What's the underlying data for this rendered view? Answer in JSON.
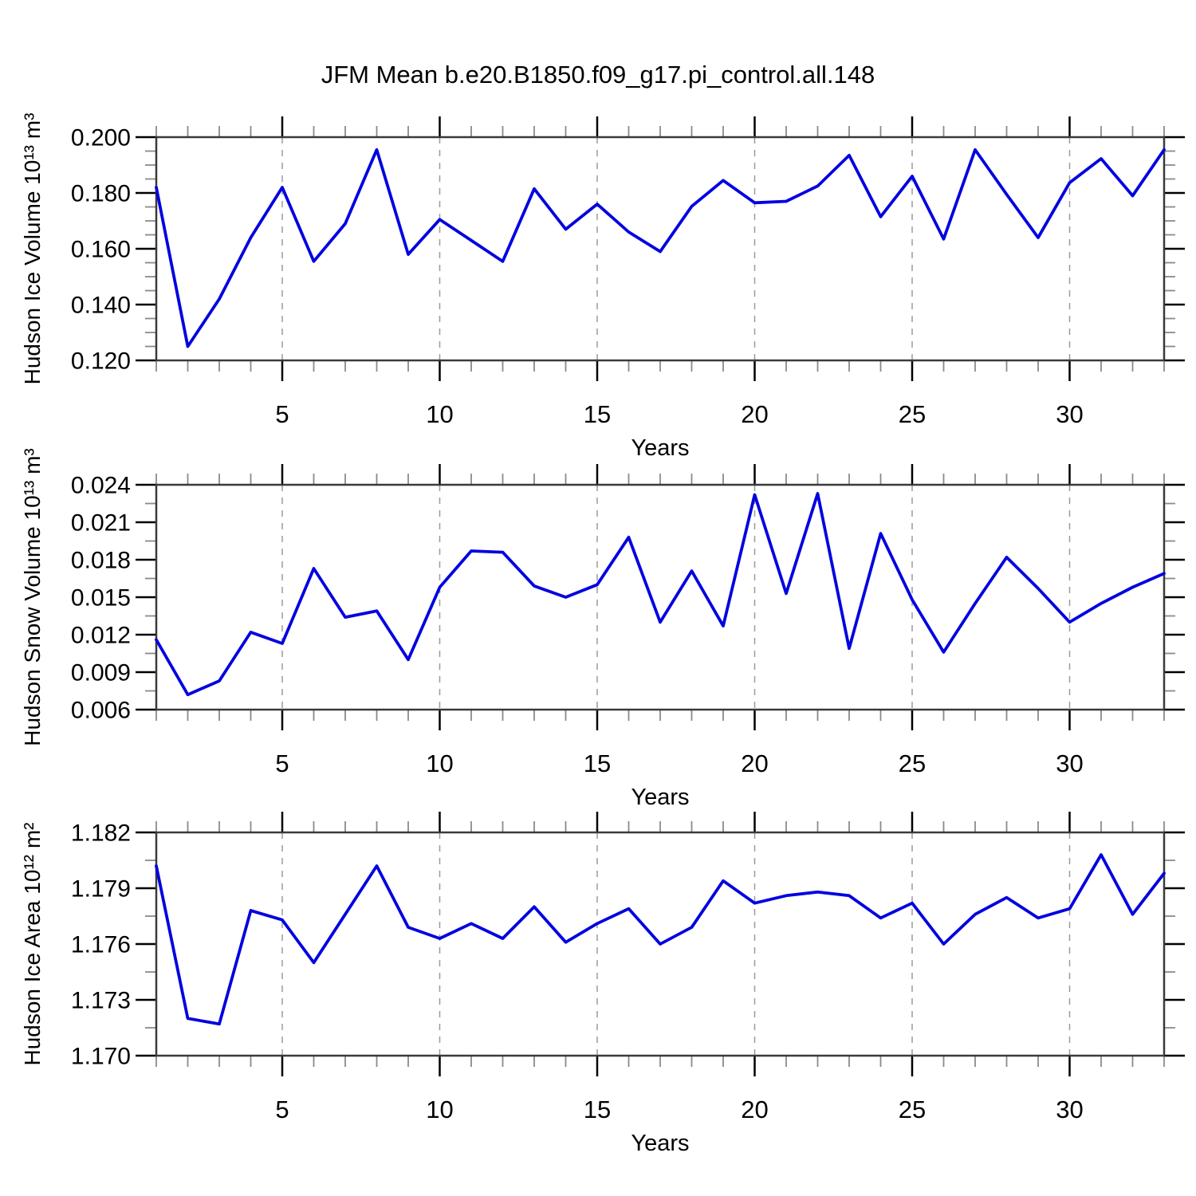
{
  "figure": {
    "title": "JFM Mean b.e20.B1850.f09_g17.pi_control.all.148",
    "line_color": "#0202e0",
    "grid_color": "#9b9b9b",
    "frame_color": "#3a3a3a",
    "major_tick_color": "#000000",
    "minor_tick_color": "#8a8a8a"
  },
  "chart_data": [
    {
      "type": "line",
      "id": "hudson-ice-volume",
      "ylabel": "Hudson Ice Volume 10¹³ m³",
      "xlabel": "Years",
      "xlim": [
        1,
        33
      ],
      "ylim": [
        0.12,
        0.2
      ],
      "xticks": [
        5,
        10,
        15,
        20,
        25,
        30
      ],
      "xtick_labels": [
        "5",
        "10",
        "15",
        "20",
        "25",
        "30"
      ],
      "yticks": [
        0.2,
        0.18,
        0.16,
        0.14,
        0.12
      ],
      "ytick_labels": [
        "0.200",
        "0.180",
        "0.160",
        "0.140",
        "0.120"
      ],
      "ytick_minor_step": 0.005,
      "grid": "vertical-dashed",
      "x": [
        1,
        2,
        3,
        4,
        5,
        6,
        7,
        8,
        9,
        10,
        11,
        12,
        13,
        14,
        15,
        16,
        17,
        18,
        19,
        20,
        21,
        22,
        23,
        24,
        25,
        26,
        27,
        28,
        29,
        30,
        31,
        32,
        33
      ],
      "values": [
        0.182,
        0.125,
        0.142,
        0.164,
        0.182,
        0.1555,
        0.169,
        0.1955,
        0.158,
        0.1705,
        0.163,
        0.1555,
        0.1815,
        0.167,
        0.176,
        0.166,
        0.159,
        0.1752,
        0.1845,
        0.1765,
        0.177,
        0.1825,
        0.1935,
        0.1715,
        0.186,
        0.1635,
        0.1955,
        0.1795,
        0.164,
        0.1837,
        0.1923,
        0.179,
        0.1955
      ]
    },
    {
      "type": "line",
      "id": "hudson-snow-volume",
      "ylabel": "Hudson Snow Volume 10¹³ m³",
      "xlabel": "Years",
      "xlim": [
        1,
        33
      ],
      "ylim": [
        0.006,
        0.024
      ],
      "xticks": [
        5,
        10,
        15,
        20,
        25,
        30
      ],
      "xtick_labels": [
        "5",
        "10",
        "15",
        "20",
        "25",
        "30"
      ],
      "yticks": [
        0.024,
        0.021,
        0.018,
        0.015,
        0.012,
        0.009,
        0.006
      ],
      "ytick_labels": [
        "0.024",
        "0.021",
        "0.018",
        "0.015",
        "0.012",
        "0.009",
        "0.006"
      ],
      "ytick_minor_step": 0.0015,
      "grid": "vertical-dashed",
      "x": [
        1,
        2,
        3,
        4,
        5,
        6,
        7,
        8,
        9,
        10,
        11,
        12,
        13,
        14,
        15,
        16,
        17,
        18,
        19,
        20,
        21,
        22,
        23,
        24,
        25,
        26,
        27,
        28,
        29,
        30,
        31,
        32,
        33
      ],
      "values": [
        0.0116,
        0.0072,
        0.0083,
        0.0122,
        0.0113,
        0.0173,
        0.0134,
        0.0139,
        0.01,
        0.0158,
        0.0187,
        0.0186,
        0.0159,
        0.015,
        0.016,
        0.0198,
        0.013,
        0.0171,
        0.0127,
        0.0232,
        0.0153,
        0.0233,
        0.0109,
        0.0201,
        0.0148,
        0.0106,
        0.0145,
        0.0182,
        0.0157,
        0.013,
        0.0145,
        0.0158,
        0.0169
      ]
    },
    {
      "type": "line",
      "id": "hudson-ice-area",
      "ylabel": "Hudson Ice Area 10¹² m²",
      "xlabel": "Years",
      "xlim": [
        1,
        33
      ],
      "ylim": [
        1.17,
        1.182
      ],
      "xticks": [
        5,
        10,
        15,
        20,
        25,
        30
      ],
      "xtick_labels": [
        "5",
        "10",
        "15",
        "20",
        "25",
        "30"
      ],
      "yticks": [
        1.182,
        1.179,
        1.176,
        1.173,
        1.17
      ],
      "ytick_labels": [
        "1.182",
        "1.179",
        "1.176",
        "1.173",
        "1.170"
      ],
      "ytick_minor_step": 0.0015,
      "grid": "vertical-dashed",
      "x": [
        1,
        2,
        3,
        4,
        5,
        6,
        7,
        8,
        9,
        10,
        11,
        12,
        13,
        14,
        15,
        16,
        17,
        18,
        19,
        20,
        21,
        22,
        23,
        24,
        25,
        26,
        27,
        28,
        29,
        30,
        31,
        32,
        33
      ],
      "values": [
        1.1802,
        1.172,
        1.1717,
        1.1778,
        1.1773,
        1.175,
        1.1776,
        1.1802,
        1.1769,
        1.1763,
        1.1771,
        1.1763,
        1.178,
        1.1761,
        1.1771,
        1.1779,
        1.176,
        1.1769,
        1.1794,
        1.1782,
        1.1786,
        1.1788,
        1.1786,
        1.1774,
        1.1782,
        1.176,
        1.1776,
        1.1785,
        1.1774,
        1.1779,
        1.1808,
        1.1776,
        1.1798
      ]
    }
  ]
}
